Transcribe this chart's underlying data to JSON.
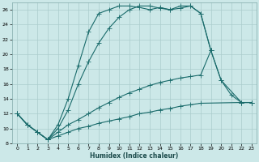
{
  "xlabel": "Humidex (Indice chaleur)",
  "bg_color": "#cce8e8",
  "grid_color": "#aacccc",
  "line_color": "#1a6b6b",
  "xlim": [
    -0.5,
    23.5
  ],
  "ylim": [
    8,
    27
  ],
  "xticks": [
    0,
    1,
    2,
    3,
    4,
    5,
    6,
    7,
    8,
    9,
    10,
    11,
    12,
    13,
    14,
    15,
    16,
    17,
    18,
    19,
    20,
    21,
    22,
    23
  ],
  "yticks": [
    8,
    10,
    12,
    14,
    16,
    18,
    20,
    22,
    24,
    26
  ],
  "line1_x": [
    0,
    1,
    2,
    3,
    4,
    5,
    6,
    7,
    8,
    9,
    10,
    11,
    12,
    13,
    14,
    15,
    16,
    17,
    18,
    22,
    23
  ],
  "line1_y": [
    12.0,
    10.5,
    9.5,
    8.5,
    9.0,
    9.5,
    10.0,
    10.3,
    10.7,
    11.0,
    11.3,
    11.6,
    12.0,
    12.2,
    12.5,
    12.7,
    13.0,
    13.2,
    13.4,
    13.5,
    13.5
  ],
  "line2_x": [
    0,
    1,
    2,
    3,
    4,
    5,
    6,
    7,
    8,
    9,
    10,
    11,
    12,
    13,
    14,
    15,
    16,
    17,
    18,
    19,
    20,
    22,
    23
  ],
  "line2_y": [
    12.0,
    10.5,
    9.5,
    8.5,
    9.5,
    10.5,
    11.2,
    12.0,
    12.8,
    13.5,
    14.2,
    14.8,
    15.3,
    15.8,
    16.2,
    16.5,
    16.8,
    17.0,
    17.2,
    20.5,
    16.5,
    13.5,
    13.5
  ],
  "line3_x": [
    0,
    1,
    2,
    3,
    4,
    5,
    6,
    7,
    8,
    9,
    10,
    11,
    12,
    13,
    14,
    15,
    16,
    17,
    18,
    19,
    20,
    21,
    22,
    23
  ],
  "line3_y": [
    12.0,
    10.5,
    9.5,
    8.5,
    10.0,
    12.5,
    16.0,
    19.0,
    21.5,
    23.5,
    25.0,
    26.0,
    26.5,
    26.5,
    26.2,
    26.0,
    26.2,
    26.5,
    25.5,
    20.5,
    16.5,
    14.5,
    13.5,
    13.5
  ],
  "line4_x": [
    0,
    1,
    2,
    3,
    4,
    5,
    6,
    7,
    8,
    9,
    10,
    11,
    12,
    13,
    14,
    15,
    16,
    17,
    18,
    19
  ],
  "line4_y": [
    12.0,
    10.5,
    9.5,
    8.5,
    10.5,
    14.0,
    18.5,
    23.0,
    25.5,
    26.0,
    26.5,
    26.5,
    26.3,
    26.0,
    26.3,
    26.0,
    26.5,
    26.5,
    25.5,
    20.5
  ]
}
